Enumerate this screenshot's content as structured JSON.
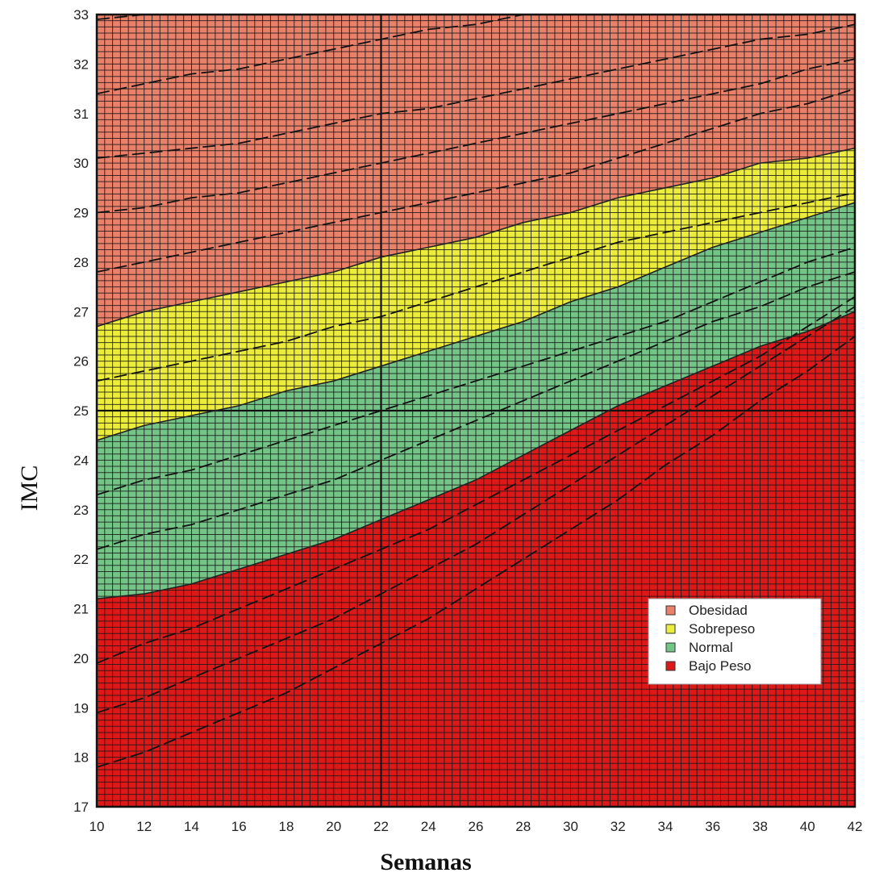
{
  "chart_data": {
    "type": "area",
    "title": "",
    "xlabel": "Semanas",
    "ylabel": "IMC",
    "xlim": [
      10,
      42
    ],
    "ylim": [
      17,
      33
    ],
    "x_ticks": [
      10,
      12,
      14,
      16,
      18,
      20,
      22,
      24,
      26,
      28,
      30,
      32,
      34,
      36,
      38,
      40,
      42
    ],
    "y_ticks": [
      17,
      18,
      19,
      20,
      21,
      22,
      23,
      24,
      25,
      26,
      27,
      28,
      29,
      30,
      31,
      32,
      33
    ],
    "grid": true,
    "legend_position": "bottom-right",
    "legend": [
      {
        "label": "Obesidad",
        "color": "#e8806a"
      },
      {
        "label": "Sobrepeso",
        "color": "#ecec3c"
      },
      {
        "label": "Normal",
        "color": "#74c487"
      },
      {
        "label": "Bajo Peso",
        "color": "#dd1818"
      }
    ],
    "x": [
      10,
      12,
      14,
      16,
      18,
      20,
      22,
      24,
      26,
      28,
      30,
      32,
      34,
      36,
      38,
      40,
      42
    ],
    "boundaries": [
      {
        "name": "Obesidad",
        "values": [
          26.7,
          27.0,
          27.2,
          27.4,
          27.6,
          27.8,
          28.1,
          28.3,
          28.5,
          28.8,
          29.0,
          29.3,
          29.5,
          29.7,
          30.0,
          30.1,
          30.3
        ]
      },
      {
        "name": "Sobrepeso",
        "values": [
          24.4,
          24.7,
          24.9,
          25.1,
          25.4,
          25.6,
          25.9,
          26.2,
          26.5,
          26.8,
          27.2,
          27.5,
          27.9,
          28.3,
          28.6,
          28.9,
          29.2
        ]
      },
      {
        "name": "Normal",
        "values": [
          21.2,
          21.3,
          21.5,
          21.8,
          22.1,
          22.4,
          22.8,
          23.2,
          23.6,
          24.1,
          24.6,
          25.1,
          25.5,
          25.9,
          26.3,
          26.6,
          27.0
        ]
      }
    ],
    "reference_lines": [
      [
        32.9,
        33.0,
        33.0,
        33.0,
        33.0,
        33.0,
        33.0,
        33.0,
        33.0,
        33.0,
        33.0,
        33.0,
        33.0,
        33.0,
        33.0,
        33.0,
        33.0
      ],
      [
        31.4,
        31.6,
        31.8,
        31.9,
        32.1,
        32.3,
        32.5,
        32.7,
        32.8,
        33.0,
        33.0,
        33.0,
        33.0,
        33.0,
        33.0,
        33.0,
        33.0
      ],
      [
        30.1,
        30.2,
        30.3,
        30.4,
        30.6,
        30.8,
        31.0,
        31.1,
        31.3,
        31.5,
        31.7,
        31.9,
        32.1,
        32.3,
        32.5,
        32.6,
        32.8
      ],
      [
        29.0,
        29.1,
        29.3,
        29.4,
        29.6,
        29.8,
        30.0,
        30.2,
        30.4,
        30.6,
        30.8,
        31.0,
        31.2,
        31.4,
        31.6,
        31.9,
        32.1
      ],
      [
        27.8,
        28.0,
        28.2,
        28.4,
        28.6,
        28.8,
        29.0,
        29.2,
        29.4,
        29.6,
        29.8,
        30.1,
        30.4,
        30.7,
        31.0,
        31.2,
        31.5
      ],
      [
        25.6,
        25.8,
        26.0,
        26.2,
        26.4,
        26.7,
        26.9,
        27.2,
        27.5,
        27.8,
        28.1,
        28.4,
        28.6,
        28.8,
        29.0,
        29.2,
        29.4
      ],
      [
        23.3,
        23.6,
        23.8,
        24.1,
        24.4,
        24.7,
        25.0,
        25.3,
        25.6,
        25.9,
        26.2,
        26.5,
        26.8,
        27.2,
        27.6,
        28.0,
        28.3
      ],
      [
        22.2,
        22.5,
        22.7,
        23.0,
        23.3,
        23.6,
        24.0,
        24.4,
        24.8,
        25.2,
        25.6,
        26.0,
        26.4,
        26.8,
        27.1,
        27.5,
        27.8
      ],
      [
        19.9,
        20.3,
        20.6,
        21.0,
        21.4,
        21.8,
        22.2,
        22.6,
        23.1,
        23.6,
        24.1,
        24.6,
        25.1,
        25.6,
        26.1,
        26.7,
        27.3
      ],
      [
        18.9,
        19.2,
        19.6,
        20.0,
        20.4,
        20.8,
        21.3,
        21.8,
        22.3,
        22.9,
        23.5,
        24.1,
        24.7,
        25.3,
        25.9,
        26.5,
        27.1
      ],
      [
        17.8,
        18.1,
        18.5,
        18.9,
        19.3,
        19.8,
        20.3,
        20.8,
        21.4,
        22.0,
        22.6,
        23.2,
        23.9,
        24.5,
        25.2,
        25.8,
        26.5
      ]
    ],
    "colors": {
      "obesidad": "#e8806a",
      "sobrepeso": "#ecec3c",
      "normal": "#74c487",
      "bajo_peso": "#dd1818",
      "grid": "#1a1a1a"
    }
  }
}
